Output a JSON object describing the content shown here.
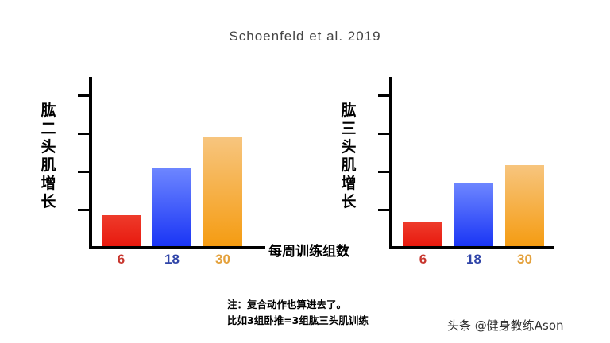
{
  "title": "Schoenfeld et al. 2019",
  "x_axis_title": "每周训练组数",
  "note": {
    "line1": "注：复合动作也算进去了。",
    "line2": "比如3组卧推=3组肱三头肌训练"
  },
  "watermark": "头条 @健身教练Ason",
  "colors": {
    "red": "#e8190e",
    "blue": "#1a35f5",
    "orange": "#f59c12",
    "label_red": "#c8362e",
    "label_blue": "#2f44a8",
    "label_orange": "#e4a13c"
  },
  "charts": [
    {
      "ylabel": "肱二头肌增长",
      "categories": [
        "6",
        "18",
        "30"
      ]
    },
    {
      "ylabel": "肱三头肌增长",
      "categories": [
        "6",
        "18",
        "30"
      ]
    }
  ],
  "chart_data": [
    {
      "type": "bar",
      "title": "Schoenfeld et al. 2019",
      "xlabel": "每周训练组数",
      "ylabel": "肱二头肌增长",
      "categories": [
        "6",
        "18",
        "30"
      ],
      "values": [
        0.85,
        2.1,
        2.9
      ],
      "ylim": [
        0,
        4
      ],
      "y_ticks_unlabeled": [
        1,
        2,
        3,
        4
      ],
      "grid": false,
      "legend": null,
      "bar_colors": [
        "#e8190e",
        "#1a35f5",
        "#f59c12"
      ]
    },
    {
      "type": "bar",
      "title": "Schoenfeld et al. 2019",
      "xlabel": "每周训练组数",
      "ylabel": "肱三头肌增长",
      "categories": [
        "6",
        "18",
        "30"
      ],
      "values": [
        0.65,
        1.7,
        2.15
      ],
      "ylim": [
        0,
        4
      ],
      "y_ticks_unlabeled": [
        1,
        2,
        3,
        4
      ],
      "grid": false,
      "legend": null,
      "bar_colors": [
        "#e8190e",
        "#1a35f5",
        "#f59c12"
      ]
    }
  ]
}
